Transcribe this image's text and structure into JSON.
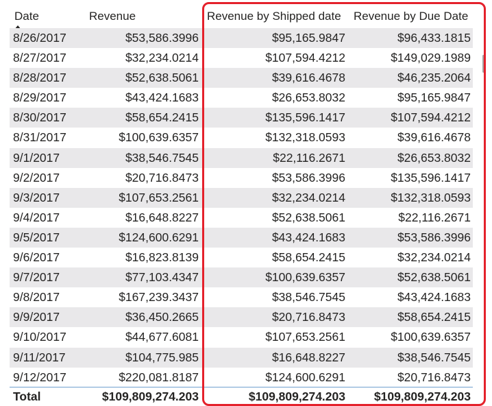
{
  "table": {
    "headers": {
      "date": "Date",
      "revenue": "Revenue",
      "revenue_shipped": "Revenue by Shipped date",
      "revenue_due": "Revenue by Due Date"
    },
    "sort_icon": "sort-ascending-icon",
    "rows": [
      {
        "date": "8/26/2017",
        "revenue": "$53,586.3996",
        "shipped": "$95,165.9847",
        "due": "$96,433.1815"
      },
      {
        "date": "8/27/2017",
        "revenue": "$32,234.0214",
        "shipped": "$107,594.4212",
        "due": "$149,029.1989"
      },
      {
        "date": "8/28/2017",
        "revenue": "$52,638.5061",
        "shipped": "$39,616.4678",
        "due": "$46,235.2064"
      },
      {
        "date": "8/29/2017",
        "revenue": "$43,424.1683",
        "shipped": "$26,653.8032",
        "due": "$95,165.9847"
      },
      {
        "date": "8/30/2017",
        "revenue": "$58,654.2415",
        "shipped": "$135,596.1417",
        "due": "$107,594.4212"
      },
      {
        "date": "8/31/2017",
        "revenue": "$100,639.6357",
        "shipped": "$132,318.0593",
        "due": "$39,616.4678"
      },
      {
        "date": "9/1/2017",
        "revenue": "$38,546.7545",
        "shipped": "$22,116.2671",
        "due": "$26,653.8032"
      },
      {
        "date": "9/2/2017",
        "revenue": "$20,716.8473",
        "shipped": "$53,586.3996",
        "due": "$135,596.1417"
      },
      {
        "date": "9/3/2017",
        "revenue": "$107,653.2561",
        "shipped": "$32,234.0214",
        "due": "$132,318.0593"
      },
      {
        "date": "9/4/2017",
        "revenue": "$16,648.8227",
        "shipped": "$52,638.5061",
        "due": "$22,116.2671"
      },
      {
        "date": "9/5/2017",
        "revenue": "$124,600.6291",
        "shipped": "$43,424.1683",
        "due": "$53,586.3996"
      },
      {
        "date": "9/6/2017",
        "revenue": "$16,823.8139",
        "shipped": "$58,654.2415",
        "due": "$32,234.0214"
      },
      {
        "date": "9/7/2017",
        "revenue": "$77,103.4347",
        "shipped": "$100,639.6357",
        "due": "$52,638.5061"
      },
      {
        "date": "9/8/2017",
        "revenue": "$167,239.3437",
        "shipped": "$38,546.7545",
        "due": "$43,424.1683"
      },
      {
        "date": "9/9/2017",
        "revenue": "$36,450.2665",
        "shipped": "$20,716.8473",
        "due": "$58,654.2415"
      },
      {
        "date": "9/10/2017",
        "revenue": "$44,677.6081",
        "shipped": "$107,653.2561",
        "due": "$100,639.6357"
      },
      {
        "date": "9/11/2017",
        "revenue": "$104,775.985",
        "shipped": "$16,648.8227",
        "due": "$38,546.7545"
      },
      {
        "date": "9/12/2017",
        "revenue": "$220,081.8187",
        "shipped": "$124,600.6291",
        "due": "$20,716.8473"
      }
    ],
    "total": {
      "label": "Total",
      "revenue": "$109,809,274.203",
      "shipped": "$109,809,274.203",
      "due": "$109,809,274.203"
    }
  },
  "colors": {
    "highlight_border": "#e4212b",
    "stripe": "#e9e8ea",
    "total_separator": "#6f9fcf"
  }
}
